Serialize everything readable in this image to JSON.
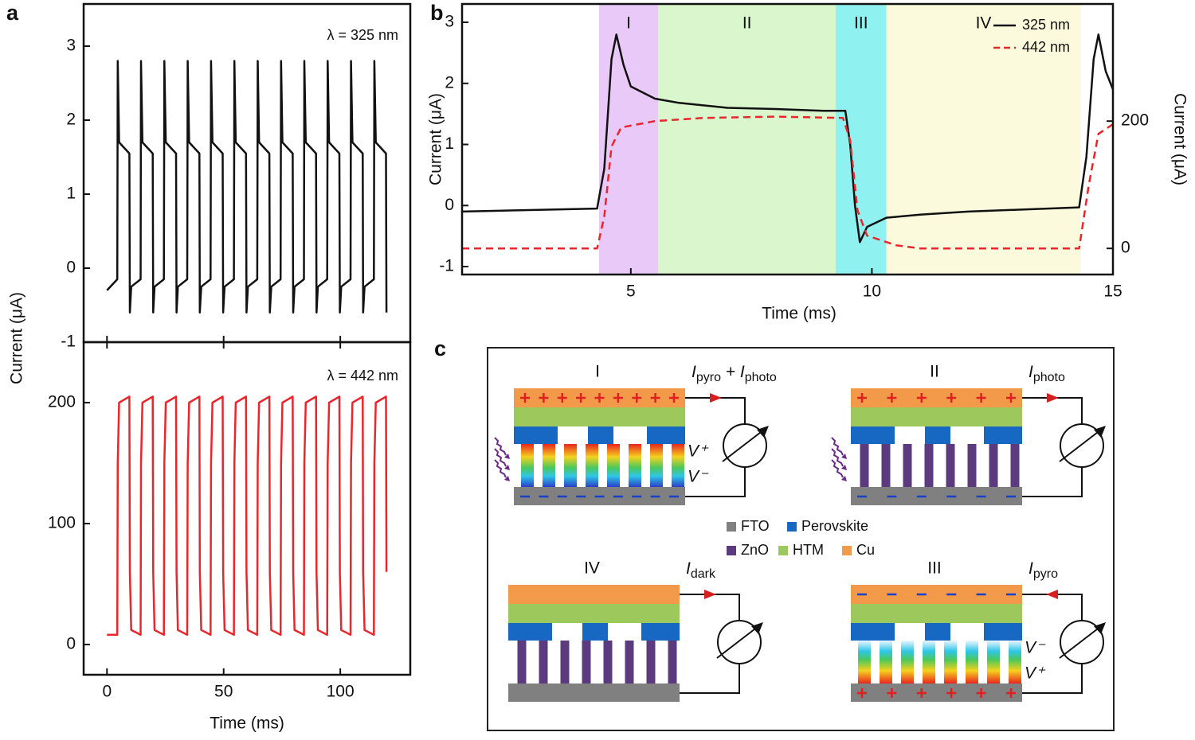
{
  "chart_data": [
    {
      "type": "line",
      "panel_label": "a",
      "ylabel": "Current (μA)",
      "annotation": "λ = 325 nm",
      "xlim": [
        -10,
        130
      ],
      "ylim": [
        -1,
        3.57
      ],
      "yticks": [
        -1,
        0,
        1,
        2,
        3
      ],
      "x": [
        0,
        4.4,
        4.6,
        5.2,
        9.6,
        9.8,
        10.4,
        14.4,
        14.6,
        15.2,
        19.6,
        19.8,
        20.4,
        24.4,
        24.6,
        25.2,
        29.6,
        29.8,
        30.4,
        34.4,
        34.6,
        35.2,
        39.6,
        39.8,
        40.4,
        44.4,
        44.6,
        45.2,
        49.6,
        49.8,
        50.4,
        54.4,
        54.6,
        55.2,
        59.6,
        59.8,
        60.4,
        64.4,
        64.6,
        65.2,
        69.6,
        69.8,
        70.4,
        74.4,
        74.6,
        75.2,
        79.6,
        79.8,
        80.4,
        84.4,
        84.6,
        85.2,
        89.6,
        89.8,
        90.4,
        94.4,
        94.6,
        95.2,
        99.6,
        99.8,
        100.4,
        104.4,
        104.6,
        105.2,
        109.6,
        109.8,
        110.4,
        114.4,
        114.6,
        115.2,
        119.6,
        119.8
      ],
      "series": [
        {
          "color": "#111111",
          "values": [
            -0.3,
            -0.15,
            2.8,
            1.7,
            1.55,
            -0.6,
            -0.25,
            -0.15,
            2.8,
            1.7,
            1.55,
            -0.6,
            -0.25,
            -0.15,
            2.8,
            1.7,
            1.55,
            -0.6,
            -0.25,
            -0.15,
            2.8,
            1.7,
            1.55,
            -0.6,
            -0.25,
            -0.15,
            2.8,
            1.7,
            1.55,
            -0.6,
            -0.25,
            -0.15,
            2.8,
            1.7,
            1.55,
            -0.6,
            -0.25,
            -0.15,
            2.8,
            1.7,
            1.55,
            -0.6,
            -0.25,
            -0.15,
            2.8,
            1.7,
            1.55,
            -0.6,
            -0.25,
            -0.15,
            2.8,
            1.7,
            1.55,
            -0.6,
            -0.25,
            -0.15,
            2.8,
            1.7,
            1.55,
            -0.6,
            -0.25,
            -0.15,
            2.8,
            1.7,
            1.55,
            -0.6,
            -0.25,
            -0.15,
            2.8,
            1.7,
            1.55,
            -0.6
          ]
        }
      ]
    },
    {
      "type": "line",
      "xlabel": "Time (ms)",
      "annotation": "λ = 442 nm",
      "xlim": [
        -10,
        130
      ],
      "xticks": [
        0,
        50,
        100
      ],
      "ylim": [
        -25,
        250
      ],
      "yticks": [
        0,
        100,
        200
      ],
      "x": [
        0,
        4.4,
        4.6,
        5.2,
        9.6,
        9.8,
        10.4,
        14.4,
        14.6,
        15.2,
        19.6,
        19.8,
        20.4,
        24.4,
        24.6,
        25.2,
        29.6,
        29.8,
        30.4,
        34.4,
        34.6,
        35.2,
        39.6,
        39.8,
        40.4,
        44.4,
        44.6,
        45.2,
        49.6,
        49.8,
        50.4,
        54.4,
        54.6,
        55.2,
        59.6,
        59.8,
        60.4,
        64.4,
        64.6,
        65.2,
        69.6,
        69.8,
        70.4,
        74.4,
        74.6,
        75.2,
        79.6,
        79.8,
        80.4,
        84.4,
        84.6,
        85.2,
        89.6,
        89.8,
        90.4,
        94.4,
        94.6,
        95.2,
        99.6,
        99.8,
        100.4,
        104.4,
        104.6,
        105.2,
        109.6,
        109.8,
        110.4,
        114.4,
        114.6,
        115.2,
        119.6,
        119.8
      ],
      "series": [
        {
          "color": "#e8262b",
          "values": [
            8,
            8,
            150,
            200,
            205,
            60,
            12,
            8,
            150,
            200,
            205,
            60,
            12,
            8,
            150,
            200,
            205,
            60,
            12,
            8,
            150,
            200,
            205,
            60,
            12,
            8,
            150,
            200,
            205,
            60,
            12,
            8,
            150,
            200,
            205,
            60,
            12,
            8,
            150,
            200,
            205,
            60,
            12,
            8,
            150,
            200,
            205,
            60,
            12,
            8,
            150,
            200,
            205,
            60,
            12,
            8,
            150,
            200,
            205,
            60,
            12,
            8,
            150,
            200,
            205,
            60,
            12,
            8,
            150,
            200,
            205,
            60
          ]
        }
      ]
    },
    {
      "type": "line",
      "panel_label": "b",
      "xlabel": "Time (ms)",
      "ylabel": "Current (μA)",
      "y2label": "Current (μA)",
      "xlim": [
        1.5,
        15
      ],
      "xticks": [
        5,
        10,
        15
      ],
      "ylim": [
        -1.13,
        3.3
      ],
      "yticks": [
        -1,
        0,
        1,
        2,
        3
      ],
      "y2lim": [
        -41,
        384
      ],
      "y2ticks": [
        0,
        200
      ],
      "legend": "upper right",
      "regions": [
        {
          "label": "I",
          "x0": 4.34,
          "x1": 5.57,
          "color": "#e9c9f7"
        },
        {
          "label": "II",
          "x0": 5.57,
          "x1": 9.25,
          "color": "#d9f6cc"
        },
        {
          "label": "III",
          "x0": 9.25,
          "x1": 10.3,
          "color": "#8ff2f0"
        },
        {
          "label": "IV",
          "x0": 10.3,
          "x1": 14.33,
          "color": "#fbfadc"
        }
      ],
      "series": [
        {
          "name": "325 nm",
          "color": "#111111",
          "dashed": false,
          "x": [
            1.5,
            4.3,
            4.45,
            4.6,
            4.7,
            4.85,
            5.0,
            5.5,
            6,
            7,
            8,
            9,
            9.45,
            9.55,
            9.65,
            9.75,
            9.9,
            10.3,
            11,
            12,
            13,
            14.3,
            14.45,
            14.6,
            14.7,
            14.85,
            15
          ],
          "values": [
            -0.1,
            -0.05,
            0.6,
            2.4,
            2.8,
            2.3,
            1.95,
            1.75,
            1.68,
            1.6,
            1.58,
            1.55,
            1.55,
            1.0,
            0.0,
            -0.6,
            -0.35,
            -0.2,
            -0.15,
            -0.1,
            -0.07,
            -0.03,
            0.8,
            2.4,
            2.8,
            2.2,
            1.9
          ]
        },
        {
          "name": "442 nm",
          "color": "#e8262b",
          "dashed": true,
          "axis": "y2",
          "x": [
            1.5,
            4.3,
            4.45,
            4.6,
            4.8,
            5.5,
            6.5,
            8,
            9.4,
            9.55,
            9.7,
            9.9,
            10.5,
            11,
            14.3,
            14.5,
            14.7,
            15
          ],
          "values": [
            0,
            0,
            50,
            160,
            190,
            200,
            205,
            207,
            205,
            170,
            60,
            20,
            5,
            0,
            0,
            100,
            180,
            195
          ]
        }
      ]
    }
  ],
  "diagram": {
    "panel_label": "c",
    "diagrams": [
      {
        "label": "I",
        "current": [
          {
            "text": "I",
            "sub": false
          },
          {
            "text": "pyro",
            "sub": true
          },
          {
            "text": " + I",
            "sub": false
          },
          {
            "text": "photo",
            "sub": true
          }
        ],
        "voltage_top": "V⁺",
        "voltage_bottom": "V⁻"
      },
      {
        "label": "II",
        "current": [
          {
            "text": "I",
            "sub": false
          },
          {
            "text": "photo",
            "sub": true
          }
        ]
      },
      {
        "label": "IV",
        "current": [
          {
            "text": "I",
            "sub": false
          },
          {
            "text": "dark",
            "sub": true
          }
        ]
      },
      {
        "label": "III",
        "current": [
          {
            "text": "I",
            "sub": false
          },
          {
            "text": "pyro",
            "sub": true
          }
        ],
        "voltage_top": "V⁻",
        "voltage_bottom": "V⁺"
      }
    ],
    "legend": [
      {
        "name": "FTO",
        "color": "#808080"
      },
      {
        "name": "Perovskite",
        "color": "#1668c2"
      },
      {
        "name": "ZnO",
        "color": "#5b3b7d"
      },
      {
        "name": "HTM",
        "color": "#9dc95c"
      },
      {
        "name": "Cu",
        "color": "#f3994a"
      }
    ]
  }
}
